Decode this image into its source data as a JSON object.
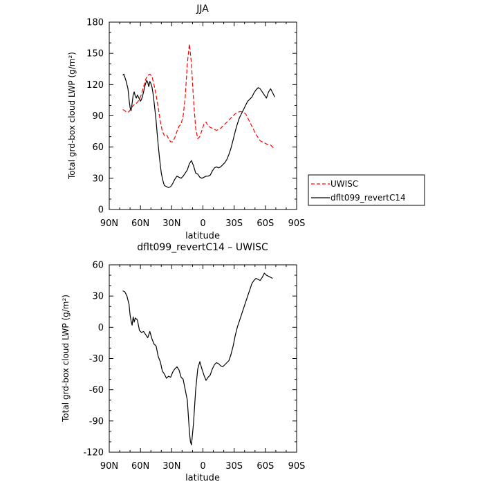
{
  "chart_data": [
    {
      "type": "line",
      "title": "JJA",
      "xlabel": "latitude",
      "ylabel": "Total grd-box cloud LWP (g/m²)",
      "xlim": [
        90,
        -90
      ],
      "ylim": [
        0,
        180
      ],
      "xticks": [
        {
          "value": 90,
          "label": "90N"
        },
        {
          "value": 60,
          "label": "60N"
        },
        {
          "value": 30,
          "label": "30N"
        },
        {
          "value": 0,
          "label": "0"
        },
        {
          "value": -30,
          "label": "30S"
        },
        {
          "value": -60,
          "label": "60S"
        },
        {
          "value": -90,
          "label": "90S"
        }
      ],
      "yticks": [
        0,
        30,
        60,
        90,
        120,
        150,
        180
      ],
      "grid": false,
      "legend_position": "right of plot, outside",
      "series": [
        {
          "name": "UWISC",
          "color": "#ff0000",
          "style": "dashed",
          "x": [
            77,
            75,
            73,
            71,
            69,
            67,
            65,
            63,
            61,
            59,
            57,
            55,
            53,
            51,
            49,
            47,
            45,
            43,
            41,
            39,
            37,
            35,
            33,
            31,
            29,
            27,
            25,
            23,
            21,
            19,
            17,
            15,
            13,
            11,
            9,
            7,
            5,
            3,
            1,
            -1,
            -3,
            -5,
            -7,
            -9,
            -11,
            -13,
            -15,
            -17,
            -19,
            -21,
            -23,
            -25,
            -27,
            -29,
            -31,
            -33,
            -35,
            -37,
            -39,
            -41,
            -43,
            -45,
            -47,
            -49,
            -51,
            -53,
            -55,
            -57,
            -59,
            -61,
            -63,
            -65,
            -67,
            -69
          ],
          "values": [
            96,
            95,
            93,
            94,
            97,
            100,
            101,
            103,
            106,
            111,
            118,
            125,
            129,
            130,
            128,
            120,
            110,
            98,
            85,
            75,
            71,
            72,
            68,
            65,
            65,
            69,
            75,
            80,
            82,
            90,
            108,
            140,
            159,
            140,
            105,
            78,
            68,
            70,
            76,
            82,
            84,
            80,
            79,
            78,
            77,
            76,
            77,
            78,
            80,
            82,
            84,
            86,
            88,
            90,
            92,
            93,
            94,
            94,
            93,
            92,
            88,
            84,
            80,
            76,
            72,
            69,
            66,
            65,
            64,
            63,
            62,
            62,
            60,
            58
          ]
        },
        {
          "name": "dflt099_revertC14",
          "color": "#000000",
          "style": "solid",
          "x": [
            77,
            76,
            75,
            74,
            73,
            72,
            71,
            70,
            69,
            68,
            67,
            66,
            65,
            64,
            63,
            62,
            61,
            60,
            59,
            58,
            57,
            56,
            55,
            54,
            53,
            52,
            51,
            50,
            49,
            48,
            47,
            46,
            45,
            44,
            43,
            42,
            41,
            40,
            39,
            38,
            37,
            35,
            33,
            31,
            29,
            27,
            25,
            23,
            21,
            19,
            17,
            15,
            13,
            11,
            9,
            7,
            5,
            3,
            1,
            -1,
            -3,
            -5,
            -7,
            -9,
            -11,
            -13,
            -15,
            -17,
            -19,
            -21,
            -23,
            -25,
            -27,
            -29,
            -31,
            -33,
            -35,
            -37,
            -39,
            -41,
            -43,
            -45,
            -47,
            -49,
            -51,
            -53,
            -55,
            -57,
            -59,
            -61,
            -63,
            -65,
            -67,
            -69
          ],
          "values": [
            129,
            130,
            127,
            124,
            120,
            116,
            106,
            98,
            95,
            102,
            110,
            113,
            109,
            107,
            110,
            108,
            106,
            104,
            106,
            109,
            113,
            118,
            121,
            124,
            122,
            118,
            123,
            121,
            118,
            112,
            104,
            95,
            85,
            73,
            62,
            52,
            43,
            35,
            30,
            26,
            23,
            22,
            21,
            22,
            25,
            29,
            32,
            31,
            30,
            32,
            35,
            38,
            44,
            47,
            42,
            35,
            34,
            31,
            30,
            31,
            32,
            32,
            33,
            37,
            40,
            41,
            40,
            41,
            43,
            45,
            48,
            53,
            59,
            67,
            75,
            82,
            88,
            92,
            96,
            100,
            104,
            106,
            108,
            112,
            115,
            117,
            116,
            113,
            110,
            107,
            113,
            116,
            112,
            108
          ]
        }
      ]
    },
    {
      "type": "line",
      "title": "dflt099_revertC14 – UWISC",
      "xlabel": "latitude",
      "ylabel": "Total grd-box cloud LWP (g/m²)",
      "xlim": [
        90,
        -90
      ],
      "ylim": [
        -120,
        60
      ],
      "xticks": [
        {
          "value": 90,
          "label": "90N"
        },
        {
          "value": 60,
          "label": "60N"
        },
        {
          "value": 30,
          "label": "30N"
        },
        {
          "value": 0,
          "label": "0"
        },
        {
          "value": -30,
          "label": "30S"
        },
        {
          "value": -60,
          "label": "60S"
        },
        {
          "value": -90,
          "label": "90S"
        }
      ],
      "yticks": [
        -120,
        -90,
        -60,
        -30,
        0,
        30,
        60
      ],
      "grid": false,
      "series": [
        {
          "color": "#000000",
          "style": "solid",
          "x": [
            77,
            75,
            73,
            71,
            70,
            69,
            68,
            67,
            66,
            65,
            63,
            61,
            59,
            57,
            55,
            53,
            51,
            49,
            47,
            45,
            43,
            41,
            39,
            37,
            35,
            33,
            31,
            29,
            27,
            25,
            23,
            21,
            19,
            17,
            15,
            14,
            13,
            12,
            11,
            9,
            7,
            5,
            3,
            1,
            -1,
            -3,
            -5,
            -7,
            -9,
            -11,
            -13,
            -15,
            -17,
            -19,
            -21,
            -23,
            -25,
            -27,
            -29,
            -31,
            -33,
            -35,
            -37,
            -39,
            -41,
            -43,
            -45,
            -47,
            -49,
            -51,
            -53,
            -55,
            -57,
            -59,
            -61,
            -63,
            -65,
            -67
          ],
          "values": [
            35,
            34,
            30,
            22,
            12,
            6,
            2,
            10,
            5,
            9,
            7,
            -3,
            -5,
            -4,
            -7,
            -10,
            -4,
            -11,
            -16,
            -18,
            -28,
            -33,
            -42,
            -45,
            -49,
            -47,
            -48,
            -43,
            -40,
            -38,
            -41,
            -48,
            -50,
            -60,
            -70,
            -85,
            -100,
            -110,
            -113,
            -92,
            -60,
            -40,
            -33,
            -40,
            -46,
            -51,
            -48,
            -46,
            -40,
            -36,
            -34,
            -35,
            -37,
            -38,
            -36,
            -34,
            -32,
            -26,
            -18,
            -8,
            0,
            6,
            12,
            18,
            24,
            30,
            36,
            42,
            45,
            47,
            46,
            45,
            48,
            52,
            50,
            49,
            48,
            47
          ]
        }
      ]
    }
  ],
  "legend": {
    "items": [
      {
        "label": "UWISC",
        "color": "#ff0000",
        "style": "dashed"
      },
      {
        "label": "dflt099_revertC14",
        "color": "#000000",
        "style": "solid"
      }
    ]
  }
}
